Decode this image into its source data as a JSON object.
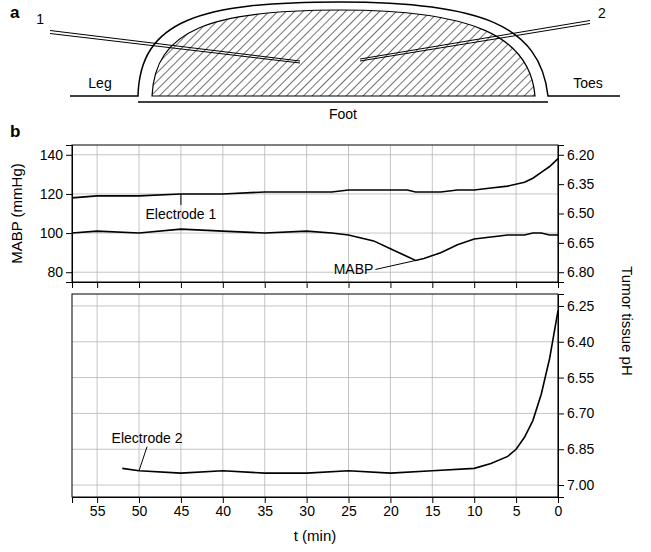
{
  "diagram": {
    "panel": "a",
    "electrode_1": "1",
    "electrode_2": "2",
    "leg": "Leg",
    "foot": "Foot",
    "toes": "Toes"
  },
  "chart_panel": "b",
  "chart_data": [
    {
      "type": "line",
      "ylabel": "MABP (mmHg)",
      "y2label": "Tumor tissue pH",
      "x": [
        58,
        55,
        50,
        45,
        40,
        35,
        30,
        27,
        25,
        22,
        20,
        18,
        17,
        16,
        14,
        12,
        10,
        8,
        6,
        4,
        3,
        2,
        1,
        0
      ],
      "xlim": [
        58,
        0
      ],
      "xticks": [
        55,
        50,
        45,
        40,
        35,
        30,
        25,
        20,
        15,
        10,
        5,
        0
      ],
      "ylim": [
        75,
        145
      ],
      "yticks": [
        80,
        100,
        120,
        140
      ],
      "y2lim": [
        6.85,
        6.15
      ],
      "y2ticks": [
        {
          "value": 6.2,
          "label": "6.20"
        },
        6.35,
        {
          "value": 6.5,
          "label": "6.50"
        },
        6.65,
        {
          "value": 6.8,
          "label": "6.80"
        }
      ],
      "grid": true,
      "tick_labels": "y",
      "series": [
        {
          "name": "MABP",
          "color": "#000000",
          "values": [
            100,
            101,
            100,
            102,
            101,
            100,
            101,
            100,
            99,
            96,
            92,
            88,
            86,
            87,
            90,
            94,
            97,
            98,
            99,
            99,
            100,
            100,
            99,
            99
          ]
        },
        {
          "name": "Electrode 1",
          "color": "#000000",
          "axis": "y2",
          "values": [
            6.42,
            6.41,
            6.41,
            6.4,
            6.4,
            6.39,
            6.39,
            6.39,
            6.38,
            6.38,
            6.38,
            6.38,
            6.39,
            6.39,
            6.39,
            6.38,
            6.38,
            6.37,
            6.36,
            6.34,
            6.32,
            6.29,
            6.26,
            6.22
          ]
        }
      ]
    },
    {
      "type": "line",
      "xlabel": "t (min)",
      "x": [
        52,
        50,
        45,
        40,
        35,
        30,
        25,
        20,
        15,
        10,
        8,
        6,
        5,
        4,
        3,
        2,
        1,
        0.5,
        0
      ],
      "xlim": [
        58,
        0
      ],
      "xticks": [
        55,
        50,
        45,
        40,
        35,
        30,
        25,
        20,
        15,
        10,
        5,
        0
      ],
      "y2lim": [
        7.05,
        6.2
      ],
      "y2ticks": [
        6.25,
        {
          "value": 6.4,
          "label": "6.40"
        },
        6.55,
        {
          "value": 6.7,
          "label": "6.70"
        },
        6.85,
        {
          "value": 7,
          "label": "7.00"
        }
      ],
      "grid": true,
      "series": [
        {
          "name": "Electrode 2",
          "color": "#000000",
          "axis": "y2",
          "values": [
            6.93,
            6.94,
            6.95,
            6.94,
            6.95,
            6.95,
            6.94,
            6.95,
            6.94,
            6.93,
            6.91,
            6.88,
            6.85,
            6.8,
            6.73,
            6.62,
            6.47,
            6.37,
            6.27
          ]
        }
      ]
    }
  ]
}
